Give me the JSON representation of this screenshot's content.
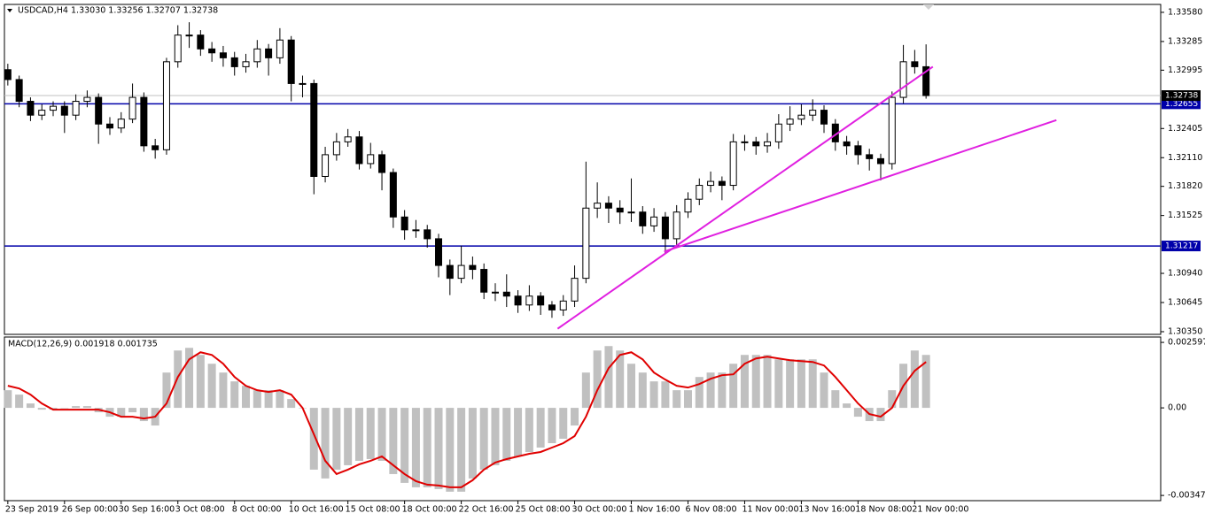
{
  "chart_data": {
    "type": "candlestick",
    "header": "USDCAD,H4",
    "ohlc_text": "1.33030 1.33256 1.32707 1.32738",
    "ohlc": [
      [
        1.33,
        1.3306,
        1.3284,
        1.329
      ],
      [
        1.329,
        1.3294,
        1.3262,
        1.3268
      ],
      [
        1.3268,
        1.3272,
        1.3248,
        1.3254
      ],
      [
        1.3254,
        1.3265,
        1.3249,
        1.3259
      ],
      [
        1.3259,
        1.3268,
        1.3253,
        1.3263
      ],
      [
        1.3263,
        1.3268,
        1.3236,
        1.3254
      ],
      [
        1.3254,
        1.3275,
        1.3249,
        1.3268
      ],
      [
        1.3268,
        1.3279,
        1.3262,
        1.3272
      ],
      [
        1.3272,
        1.3276,
        1.3225,
        1.3245
      ],
      [
        1.3245,
        1.3252,
        1.3234,
        1.3241
      ],
      [
        1.3241,
        1.3257,
        1.3236,
        1.325
      ],
      [
        1.325,
        1.3286,
        1.3246,
        1.3272
      ],
      [
        1.3272,
        1.3277,
        1.3217,
        1.3223
      ],
      [
        1.3223,
        1.323,
        1.321,
        1.3219
      ],
      [
        1.3219,
        1.3312,
        1.3214,
        1.3308
      ],
      [
        1.3308,
        1.3345,
        1.3302,
        1.3335
      ],
      [
        1.3335,
        1.3348,
        1.3322,
        1.3335
      ],
      [
        1.3335,
        1.334,
        1.3314,
        1.3321
      ],
      [
        1.3321,
        1.3328,
        1.3308,
        1.3317
      ],
      [
        1.3317,
        1.3324,
        1.3303,
        1.3312
      ],
      [
        1.3312,
        1.3318,
        1.3294,
        1.3303
      ],
      [
        1.3303,
        1.3316,
        1.3297,
        1.3308
      ],
      [
        1.3308,
        1.333,
        1.3302,
        1.3321
      ],
      [
        1.3321,
        1.3326,
        1.3294,
        1.3312
      ],
      [
        1.3312,
        1.3342,
        1.3306,
        1.333
      ],
      [
        1.333,
        1.3334,
        1.3268,
        1.3286
      ],
      [
        1.3286,
        1.3294,
        1.3272,
        1.3286
      ],
      [
        1.3286,
        1.329,
        1.3174,
        1.3192
      ],
      [
        1.3192,
        1.3222,
        1.3186,
        1.3214
      ],
      [
        1.3214,
        1.3236,
        1.3208,
        1.3227
      ],
      [
        1.3227,
        1.324,
        1.3222,
        1.3232
      ],
      [
        1.3232,
        1.3238,
        1.3199,
        1.3205
      ],
      [
        1.3205,
        1.3226,
        1.32,
        1.3214
      ],
      [
        1.3214,
        1.3218,
        1.3178,
        1.3196
      ],
      [
        1.3196,
        1.32,
        1.314,
        1.3151
      ],
      [
        1.3151,
        1.3158,
        1.3128,
        1.3138
      ],
      [
        1.3138,
        1.3148,
        1.313,
        1.3138
      ],
      [
        1.3138,
        1.3143,
        1.312,
        1.3129
      ],
      [
        1.3129,
        1.3134,
        1.309,
        1.3102
      ],
      [
        1.3102,
        1.3108,
        1.3072,
        1.3089
      ],
      [
        1.3089,
        1.3122,
        1.3084,
        1.3102
      ],
      [
        1.3102,
        1.3111,
        1.3088,
        1.3098
      ],
      [
        1.3098,
        1.3104,
        1.3068,
        1.3075
      ],
      [
        1.3075,
        1.3084,
        1.3066,
        1.3075
      ],
      [
        1.3075,
        1.3093,
        1.306,
        1.3071
      ],
      [
        1.3071,
        1.3077,
        1.3054,
        1.3062
      ],
      [
        1.3062,
        1.3082,
        1.3056,
        1.3071
      ],
      [
        1.3071,
        1.3075,
        1.3052,
        1.3062
      ],
      [
        1.3062,
        1.3066,
        1.3049,
        1.3057
      ],
      [
        1.3057,
        1.3072,
        1.3051,
        1.3066
      ],
      [
        1.3066,
        1.3102,
        1.306,
        1.3089
      ],
      [
        1.3089,
        1.3207,
        1.3084,
        1.316
      ],
      [
        1.316,
        1.3186,
        1.315,
        1.3165
      ],
      [
        1.3165,
        1.3172,
        1.3145,
        1.316
      ],
      [
        1.316,
        1.3168,
        1.3144,
        1.3156
      ],
      [
        1.3156,
        1.319,
        1.3146,
        1.3156
      ],
      [
        1.3156,
        1.3162,
        1.3134,
        1.3142
      ],
      [
        1.3142,
        1.316,
        1.3136,
        1.3151
      ],
      [
        1.3151,
        1.3156,
        1.3114,
        1.3129
      ],
      [
        1.3129,
        1.3163,
        1.3122,
        1.3156
      ],
      [
        1.3156,
        1.3176,
        1.315,
        1.3169
      ],
      [
        1.3169,
        1.319,
        1.3163,
        1.3183
      ],
      [
        1.3183,
        1.3197,
        1.3176,
        1.3187
      ],
      [
        1.3187,
        1.3192,
        1.3168,
        1.3183
      ],
      [
        1.3183,
        1.3235,
        1.3178,
        1.3227
      ],
      [
        1.3227,
        1.3234,
        1.3218,
        1.3227
      ],
      [
        1.3227,
        1.3232,
        1.3214,
        1.3223
      ],
      [
        1.3223,
        1.3236,
        1.3216,
        1.3227
      ],
      [
        1.3227,
        1.3255,
        1.322,
        1.3245
      ],
      [
        1.3245,
        1.3263,
        1.3238,
        1.325
      ],
      [
        1.325,
        1.3265,
        1.3244,
        1.3254
      ],
      [
        1.3254,
        1.327,
        1.3248,
        1.3259
      ],
      [
        1.3259,
        1.3264,
        1.3236,
        1.3245
      ],
      [
        1.3245,
        1.325,
        1.3218,
        1.3227
      ],
      [
        1.3227,
        1.3233,
        1.3214,
        1.3223
      ],
      [
        1.3223,
        1.3228,
        1.3204,
        1.3214
      ],
      [
        1.3214,
        1.322,
        1.3198,
        1.321
      ],
      [
        1.321,
        1.3215,
        1.3188,
        1.3205
      ],
      [
        1.3205,
        1.3278,
        1.3199,
        1.3272
      ],
      [
        1.3272,
        1.3325,
        1.3266,
        1.3308
      ],
      [
        1.3308,
        1.332,
        1.3296,
        1.3303
      ],
      [
        1.3303,
        1.33256,
        1.32707,
        1.32738
      ]
    ],
    "xlim": [
      -0.3,
      101.7
    ],
    "xticks": [
      {
        "value": 0,
        "label": "23 Sep 2019"
      },
      {
        "value": 5,
        "label": "26 Sep 00:00"
      },
      {
        "value": 10,
        "label": "30 Sep 16:00"
      },
      {
        "value": 15,
        "label": "3 Oct 08:00"
      },
      {
        "value": 20,
        "label": "8 Oct 00:00"
      },
      {
        "value": 25,
        "label": "10 Oct 16:00"
      },
      {
        "value": 30,
        "label": "15 Oct 08:00"
      },
      {
        "value": 35,
        "label": "18 Oct 00:00"
      },
      {
        "value": 40,
        "label": "22 Oct 16:00"
      },
      {
        "value": 45,
        "label": "25 Oct 08:00"
      },
      {
        "value": 50,
        "label": "30 Oct 00:00"
      },
      {
        "value": 55,
        "label": "1 Nov 16:00"
      },
      {
        "value": 60,
        "label": "6 Nov 08:00"
      },
      {
        "value": 65,
        "label": "11 Nov 00:00"
      },
      {
        "value": 70,
        "label": "13 Nov 16:00"
      },
      {
        "value": 75,
        "label": "18 Nov 08:00"
      },
      {
        "value": 80,
        "label": "21 Nov 00:00"
      }
    ],
    "ylim": [
      1.30323,
      1.3366
    ],
    "yticks": [
      {
        "value": 1.3358,
        "label": "1.33580"
      },
      {
        "value": 1.33285,
        "label": "1.33285"
      },
      {
        "value": 1.32995,
        "label": "1.32995"
      },
      {
        "value": 1.32405,
        "label": "1.32405"
      },
      {
        "value": 1.3211,
        "label": "1.32110"
      },
      {
        "value": 1.3182,
        "label": "1.31820"
      },
      {
        "value": 1.31525,
        "label": "1.31525"
      },
      {
        "value": 1.3094,
        "label": "1.30940"
      },
      {
        "value": 1.30645,
        "label": "1.30645"
      },
      {
        "value": 1.3035,
        "label": "1.30350"
      }
    ],
    "current_price": {
      "value": 1.32738,
      "label": "1.32738",
      "color": "#000000"
    },
    "hlines": [
      {
        "value": 1.32655,
        "label": "1.32655",
        "color": "#0000aa"
      },
      {
        "value": 1.31217,
        "label": "1.31217",
        "color": "#0000aa"
      }
    ],
    "trendlines": [
      {
        "x": [
          48.5,
          81.6
        ],
        "y": [
          1.3038,
          1.3303
        ],
        "color": "#e020e0"
      },
      {
        "x": [
          57.9,
          92.5
        ],
        "y": [
          1.3116,
          1.3249
        ],
        "color": "#e020e0"
      }
    ],
    "macd": {
      "label": "MACD(12,26,9) 0.001918 0.001735",
      "ylim": [
        -0.00368,
        0.00281
      ],
      "yticks": [
        {
          "value": 0.002597,
          "label": "0.002597"
        },
        {
          "value": 0,
          "label": "0.00"
        },
        {
          "value": -0.003473,
          "label": "-0.003473"
        }
      ],
      "histogram_color": "#c0c0c0",
      "signal_color": "#e00000",
      "histogram": [
        0.0007,
        0.000525,
        0.000175,
        -7e-05,
        -7e-05,
        0,
        7e-05,
        7e-05,
        -0.000175,
        -0.00035,
        -0.00035,
        -0.000175,
        -0.000525,
        -0.0007,
        0.0014,
        0.002275,
        0.00238,
        0.0021,
        0.00175,
        0.0014,
        0.00105,
        0.000875,
        0.0007,
        0.0007,
        0.0007,
        0.00035,
        0,
        -0.00245,
        -0.0028,
        -0.00245,
        -0.002275,
        -0.0021,
        -0.00203,
        -0.0021,
        -0.002625,
        -0.002975,
        -0.00315,
        -0.00315,
        -0.00322,
        -0.003325,
        -0.003325,
        -0.0028,
        -0.00245,
        -0.002275,
        -0.0021,
        -0.001925,
        -0.00175,
        -0.001575,
        -0.0014,
        -0.001225,
        -0.0007,
        0.0014,
        0.002275,
        0.00245,
        0.002275,
        0.00175,
        0.0014,
        0.00105,
        0.00105,
        0.0007,
        0.0007,
        0.001225,
        0.0014,
        0.0014,
        0.00175,
        0.0021,
        0.0021,
        0.0021,
        0.001925,
        0.001925,
        0.001925,
        0.001925,
        0.0014,
        0.0007,
        0.000175,
        -0.00035,
        -0.000525,
        -0.000525,
        0.0007,
        0.00175,
        0.002275,
        0.0021
      ],
      "signal": [
        0.000875,
        0.00077,
        0.000525,
        0.000175,
        -7e-05,
        -7e-05,
        -7e-05,
        -7e-05,
        -7e-05,
        -0.000175,
        -0.00035,
        -0.00035,
        -0.00042,
        -0.00035,
        0.000175,
        0.001225,
        0.001925,
        0.002205,
        0.0021,
        0.00175,
        0.001225,
        0.000875,
        0.0007,
        0.00063,
        0.0007,
        0.000525,
        0,
        -0.00105,
        -0.0021,
        -0.002625,
        -0.00245,
        -0.00224,
        -0.0021,
        -0.001925,
        -0.002275,
        -0.002625,
        -0.002905,
        -0.003045,
        -0.00308,
        -0.00315,
        -0.00315,
        -0.00287,
        -0.00245,
        -0.00217,
        -0.00203,
        -0.001925,
        -0.00182,
        -0.00175,
        -0.001575,
        -0.0014,
        -0.00112,
        -0.00035,
        0.0007,
        0.001575,
        0.0021,
        0.002205,
        0.001925,
        0.0014,
        0.00112,
        0.000875,
        0.000805,
        0.000945,
        0.001155,
        0.001295,
        0.00133,
        0.00175,
        0.00196,
        0.00203,
        0.00196,
        0.00189,
        0.001855,
        0.00182,
        0.00168,
        0.001225,
        0.0007,
        0.000175,
        -0.000245,
        -0.00035,
        0,
        0.000875,
        0.00147,
        0.00182
      ]
    }
  }
}
